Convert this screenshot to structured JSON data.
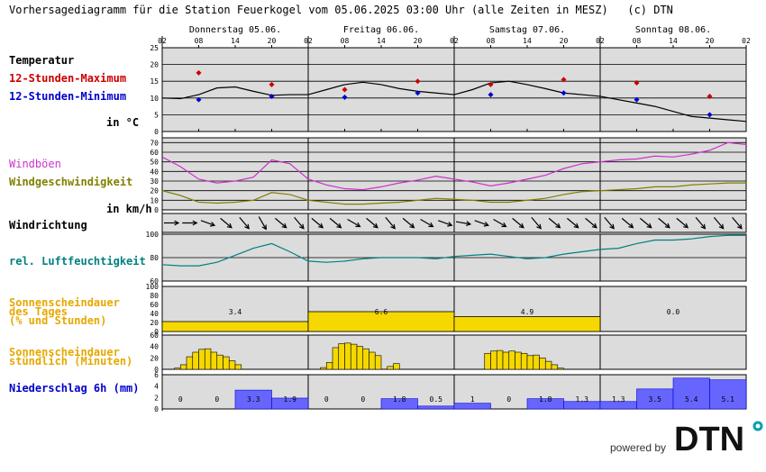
{
  "title": "Vorhersagediagramm für die Station Feuerkogel vom 05.06.2025 03:00 Uhr (alle Zeiten in MESZ)   (c) DTN",
  "labels": {
    "temperature": "Temperatur",
    "max12": "12-Stunden-Maximum",
    "min12": "12-Stunden-Minimum",
    "temp_unit": "in °C",
    "gusts": "Windböen",
    "windspeed": "Windgeschwindigkeit",
    "wind_unit": "in km/h",
    "winddir": "Windrichtung",
    "humidity": "rel. Luftfeuchtigkeit",
    "sun_daily_1": "Sonnenscheindauer",
    "sun_daily_2": "des Tages",
    "sun_daily_3": "(% und Stunden)",
    "sun_hourly_1": "Sonnenscheindauer",
    "sun_hourly_2": "stündlich (Minuten)",
    "precip": "Niederschlag 6h (mm)"
  },
  "days": [
    "Donnerstag 05.06.",
    "Freitag 06.06.",
    "Samstag 07.06.",
    "Sonntag 08.06."
  ],
  "hour_ticks": [
    "02",
    "08",
    "14",
    "20",
    "02",
    "08",
    "14",
    "20",
    "02",
    "08",
    "14",
    "20",
    "02",
    "08",
    "14",
    "20",
    "02"
  ],
  "colors": {
    "max": "#cc0000",
    "min": "#0000cc",
    "gust": "#cc33cc",
    "wind": "#808000",
    "humidity": "#008080",
    "sun_label": "#e6a800",
    "sun_fill": "#f5d800",
    "precip_label": "#0000cc",
    "precip_fill": "#6666ff",
    "panel_bg": "#dcdcdc"
  },
  "chart_data": {
    "temperature": {
      "ylim": [
        0,
        25
      ],
      "yticks": [
        0,
        5,
        10,
        15,
        20,
        25
      ],
      "hours": [
        0,
        3,
        6,
        9,
        12,
        15,
        18,
        21,
        24,
        27,
        30,
        33,
        36,
        39,
        42,
        45,
        48,
        51,
        54,
        57,
        60,
        63,
        66,
        69,
        72,
        75,
        78,
        81,
        84,
        87,
        90,
        93,
        96
      ],
      "values": [
        10,
        9.8,
        11,
        13,
        13.3,
        12,
        10.8,
        11,
        11,
        12.5,
        14,
        14.7,
        14,
        12.8,
        12,
        11.5,
        11,
        12.5,
        14.5,
        15,
        14,
        12.8,
        11.5,
        11,
        10.5,
        9.5,
        8.5,
        7.5,
        6,
        4.5,
        4,
        3.5,
        3
      ],
      "max": [
        {
          "hour": 6,
          "value": 17.5
        },
        {
          "hour": 18,
          "value": 14
        },
        {
          "hour": 30,
          "value": 12.5
        },
        {
          "hour": 42,
          "value": 15
        },
        {
          "hour": 54,
          "value": 14
        },
        {
          "hour": 66,
          "value": 15.5
        },
        {
          "hour": 78,
          "value": 14.5
        },
        {
          "hour": 90,
          "value": 10.5
        }
      ],
      "min": [
        {
          "hour": 6,
          "value": 9.5
        },
        {
          "hour": 18,
          "value": 10.5
        },
        {
          "hour": 30,
          "value": 10.2
        },
        {
          "hour": 42,
          "value": 11.5
        },
        {
          "hour": 54,
          "value": 11
        },
        {
          "hour": 66,
          "value": 11.5
        },
        {
          "hour": 78,
          "value": 9.5
        },
        {
          "hour": 90,
          "value": 5
        }
      ]
    },
    "wind": {
      "ylim": [
        0,
        75
      ],
      "yticks": [
        0,
        10,
        20,
        30,
        40,
        50,
        60,
        70
      ],
      "hours": [
        0,
        3,
        6,
        9,
        12,
        15,
        18,
        21,
        24,
        27,
        30,
        33,
        36,
        39,
        42,
        45,
        48,
        51,
        54,
        57,
        60,
        63,
        66,
        69,
        72,
        75,
        78,
        81,
        84,
        87,
        90,
        93,
        96
      ],
      "gust": [
        55,
        45,
        32,
        28,
        30,
        34,
        52,
        48,
        32,
        26,
        22,
        21,
        24,
        28,
        31,
        35,
        32,
        29,
        25,
        28,
        32,
        36,
        43,
        48,
        50,
        52,
        53,
        56,
        55,
        58,
        62,
        70,
        68
      ],
      "speed": [
        20,
        15,
        8,
        7,
        8,
        10,
        18,
        16,
        10,
        8,
        6,
        6,
        7,
        8,
        10,
        12,
        11,
        10,
        8,
        8,
        10,
        12,
        16,
        19,
        20,
        21,
        22,
        24,
        24,
        26,
        27,
        28,
        28
      ]
    },
    "wind_direction": {
      "hours": [
        0,
        3,
        6,
        9,
        12,
        15,
        18,
        21,
        24,
        27,
        30,
        33,
        36,
        39,
        42,
        45,
        48,
        51,
        54,
        57,
        60,
        63,
        66,
        69,
        72,
        75,
        78,
        81,
        84,
        87,
        90,
        93,
        96
      ],
      "degrees_to": [
        90,
        90,
        110,
        130,
        140,
        150,
        130,
        140,
        130,
        130,
        120,
        130,
        140,
        130,
        120,
        110,
        100,
        110,
        120,
        130,
        140,
        130,
        130,
        130,
        140,
        130,
        130,
        130,
        130,
        140,
        140,
        140,
        150
      ]
    },
    "humidity": {
      "ylim": [
        60,
        100
      ],
      "yticks": [
        60,
        80,
        100
      ],
      "hours": [
        0,
        3,
        6,
        9,
        12,
        15,
        18,
        21,
        24,
        27,
        30,
        33,
        36,
        39,
        42,
        45,
        48,
        51,
        54,
        57,
        60,
        63,
        66,
        69,
        72,
        75,
        78,
        81,
        84,
        87,
        90,
        93,
        96
      ],
      "values": [
        74,
        73,
        73,
        76,
        82,
        88,
        92,
        85,
        77,
        76,
        77,
        79,
        80,
        80,
        80,
        79,
        81,
        82,
        83,
        81,
        79,
        80,
        83,
        85,
        87,
        88,
        92,
        95,
        95,
        96,
        98,
        99,
        99
      ]
    },
    "sun_daily": {
      "ylim": [
        0,
        100
      ],
      "yticks": [
        0,
        20,
        40,
        60,
        80,
        100
      ],
      "days": [
        "05.06.",
        "06.06.",
        "07.06.",
        "08.06."
      ],
      "percent": [
        22,
        44,
        33,
        0
      ],
      "hours_text": [
        "3.4",
        "6.6",
        "4.9",
        "0.0"
      ]
    },
    "sun_hourly": {
      "ylim": [
        0,
        60
      ],
      "yticks": [
        0,
        20,
        40,
        60
      ],
      "start_hour": 0,
      "minutes": [
        0,
        0,
        2,
        8,
        22,
        30,
        35,
        36,
        30,
        25,
        22,
        15,
        8,
        0,
        0,
        0,
        0,
        0,
        0,
        0,
        0,
        0,
        0,
        0,
        0,
        0,
        3,
        12,
        38,
        45,
        46,
        44,
        40,
        36,
        30,
        24,
        0,
        5,
        10,
        0,
        0,
        0,
        0,
        0,
        0,
        0,
        0,
        0,
        0,
        0,
        0,
        0,
        0,
        28,
        32,
        33,
        30,
        32,
        30,
        28,
        24,
        25,
        20,
        14,
        8,
        2,
        0,
        0,
        0,
        0,
        0,
        0,
        0,
        0,
        0,
        0,
        0,
        0,
        0,
        0,
        0,
        0,
        0,
        0,
        0,
        0,
        0,
        0,
        0,
        0,
        0,
        0,
        0,
        0,
        0,
        0
      ]
    },
    "precip_6h": {
      "ylim": [
        0,
        6
      ],
      "yticks": [
        0,
        2,
        4,
        6
      ],
      "values": [
        0,
        0,
        3.3,
        1.9,
        0,
        0,
        1.8,
        0.5,
        1,
        0,
        1.8,
        1.3,
        1.3,
        3.5,
        5.4,
        5.1
      ],
      "labels": [
        "0",
        "0",
        "3.3",
        "1.9",
        "0",
        "0",
        "1.8",
        "0.5",
        "1",
        "0",
        "1.8",
        "1.3",
        "1.3",
        "3.5",
        "5.4",
        "5.1"
      ]
    }
  },
  "footer": {
    "powered": "powered by",
    "logo": "DTN"
  }
}
